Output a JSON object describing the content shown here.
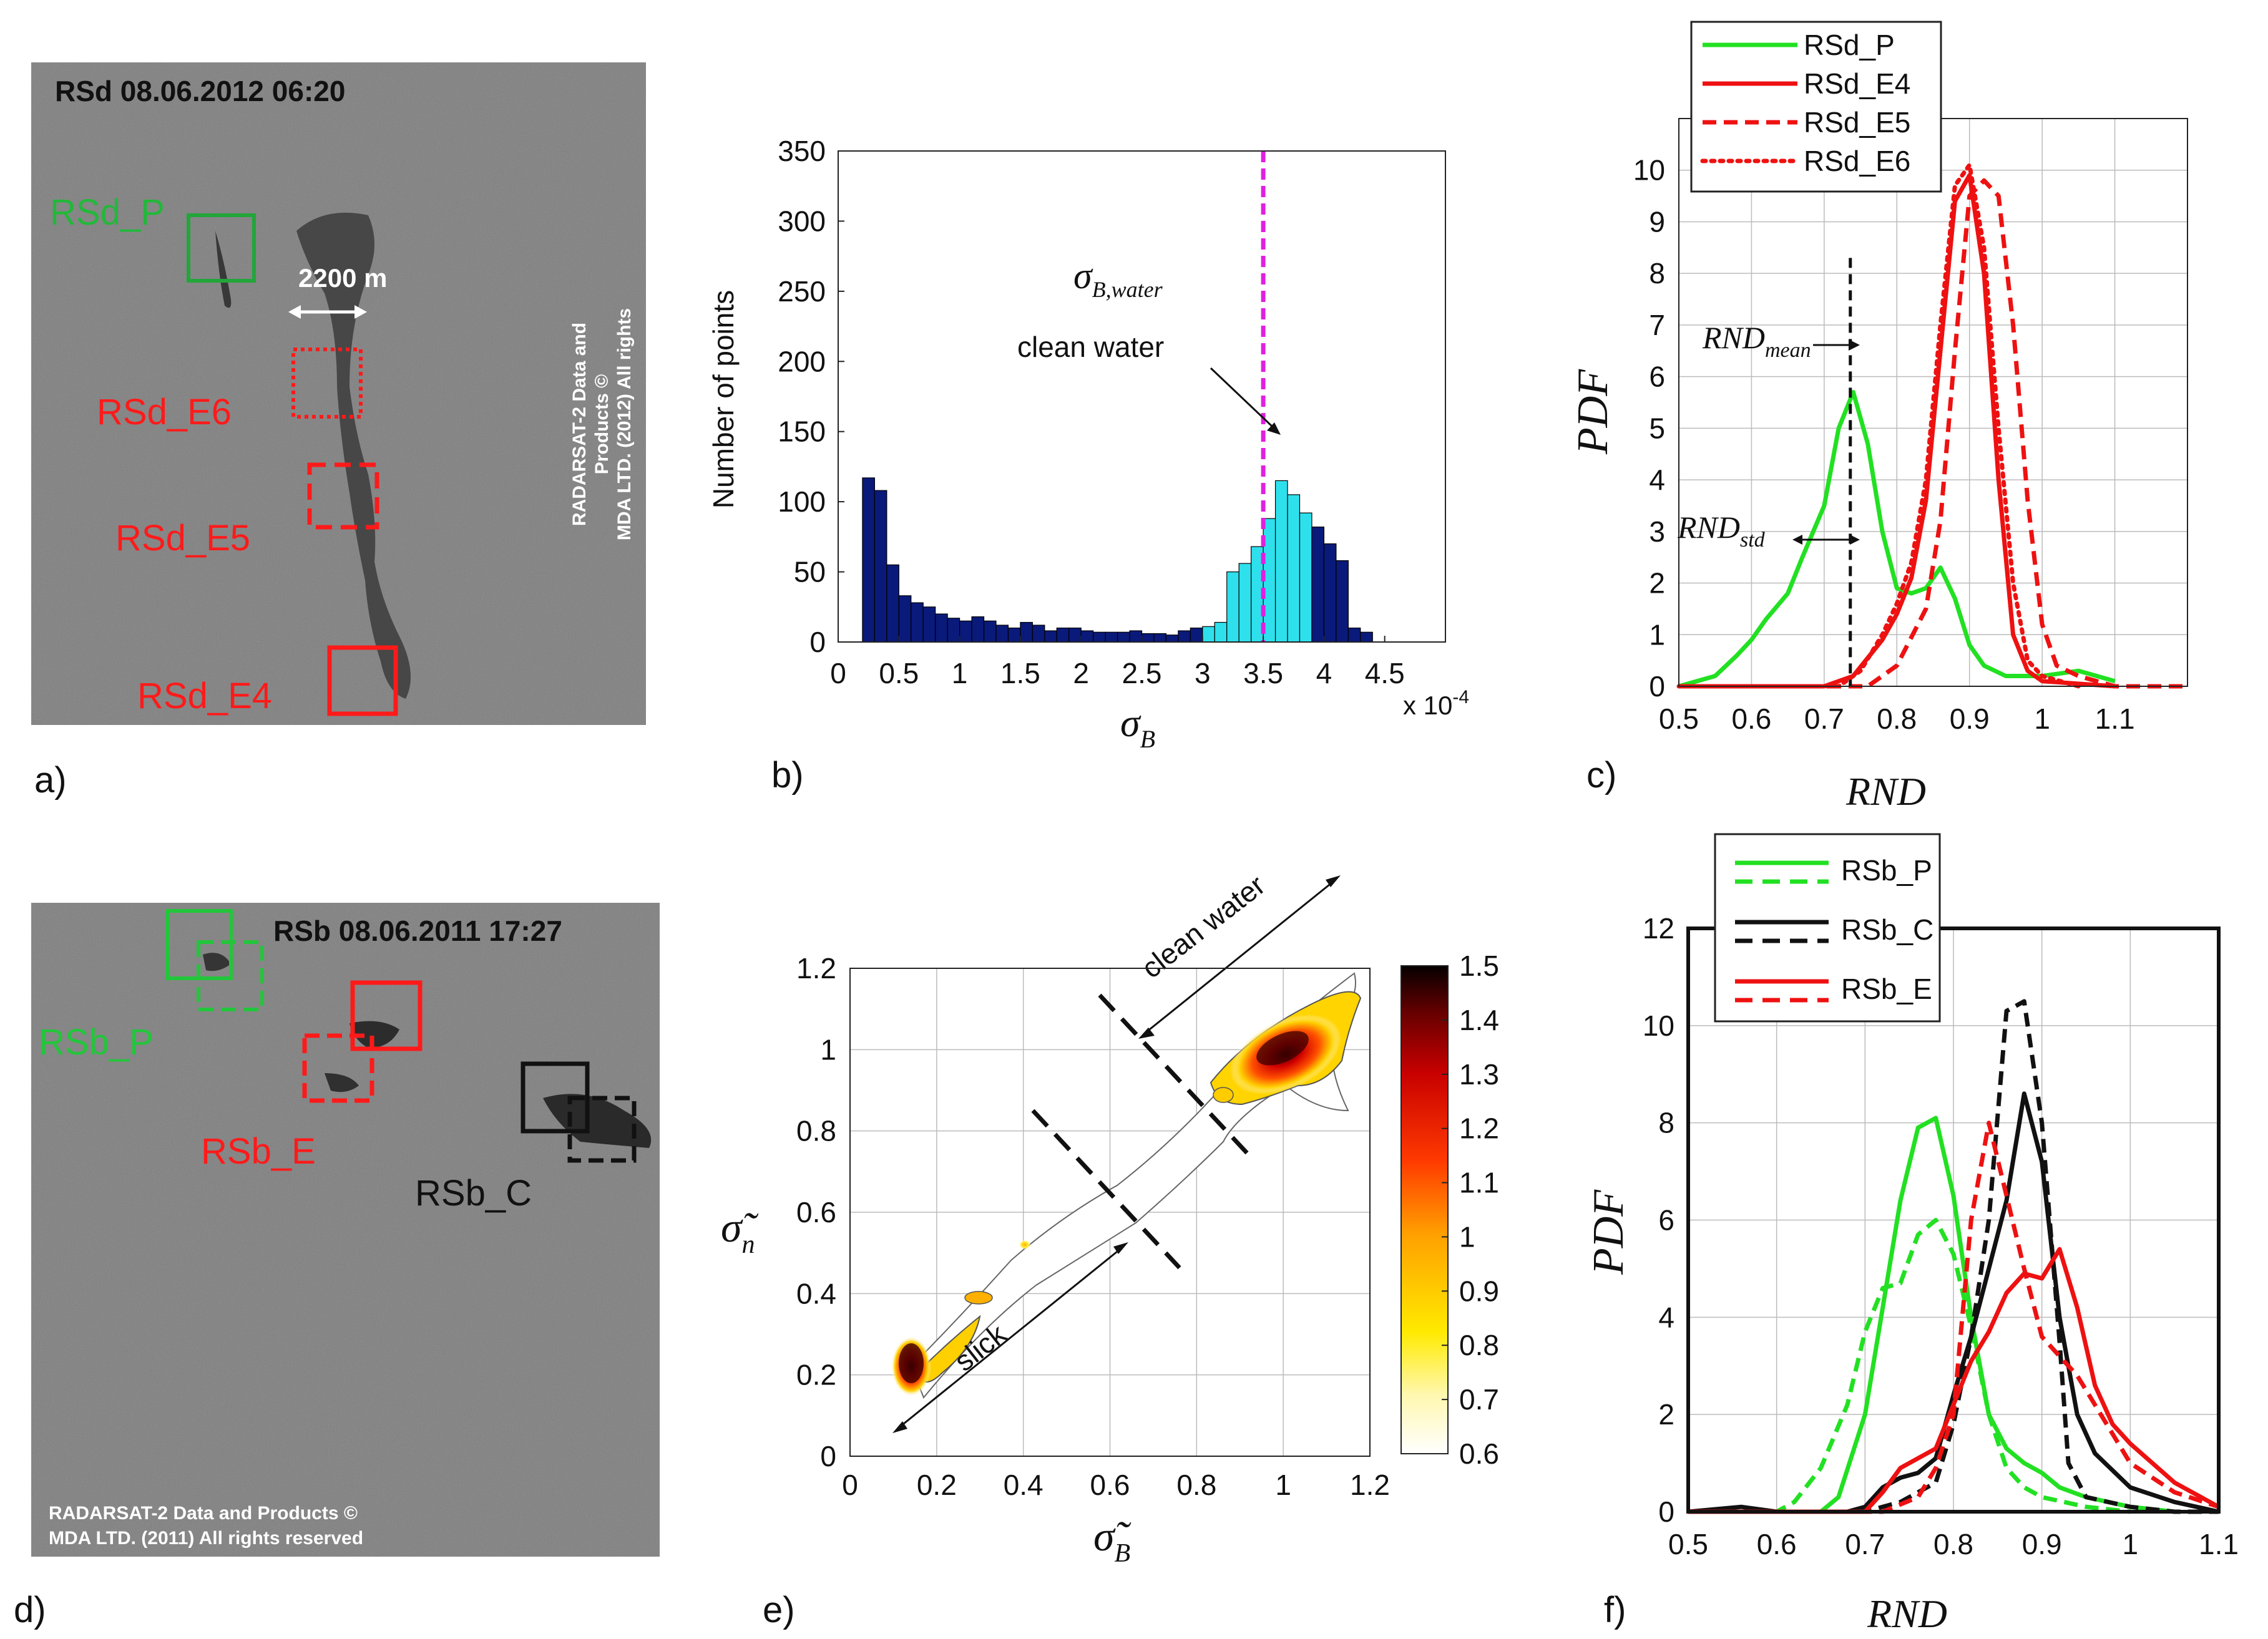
{
  "panel_labels": [
    "a)",
    "b)",
    "c)",
    "d)",
    "e)",
    "f)"
  ],
  "panel_a": {
    "title": "RSd  08.06.2012  06:20",
    "distance_label": "2200 m",
    "copyright": [
      "RADARSAT-2 Data and",
      "Products ©",
      "MDA LTD. (2012) All rights"
    ],
    "boxes": [
      {
        "label": "RSd_P",
        "color": "#22a63a",
        "style": "solid"
      },
      {
        "label": "RSd_E6",
        "color": "#ff1a1a",
        "style": "dotted"
      },
      {
        "label": "RSd_E5",
        "color": "#ff1a1a",
        "style": "dashed"
      },
      {
        "label": "RSd_E4",
        "color": "#ff1a1a",
        "style": "solid"
      }
    ]
  },
  "panel_d": {
    "title": "RSb  08.06.2011  17:27",
    "copyright": [
      "RADARSAT-2 Data and Products ©",
      "MDA LTD. (2011) All rights reserved"
    ],
    "boxes": [
      {
        "label": "RSb_P",
        "color": "#22c63a"
      },
      {
        "label": "RSb_E",
        "color": "#ff1a1a"
      },
      {
        "label": "RSb_C",
        "color": "#111111"
      }
    ]
  },
  "chart_data": [
    {
      "id": "b",
      "type": "bar",
      "ylabel": "Number of points",
      "xlabel": "σB",
      "xlabel_main": "σ",
      "xlabel_sub": "B",
      "x_multiplier": "x 10",
      "x_multiplier_exp": "-4",
      "xlim": [
        0,
        5.0
      ],
      "ylim": [
        0,
        350
      ],
      "xticks": [
        "0",
        "0.5",
        "1",
        "1.5",
        "2",
        "2.5",
        "3",
        "3.5",
        "4",
        "4.5"
      ],
      "yticks": [
        "0",
        "50",
        "100",
        "150",
        "200",
        "250",
        "300",
        "350"
      ],
      "bin_width": 0.1,
      "bin_starts": [
        0.2,
        0.3,
        0.4,
        0.5,
        0.6,
        0.7,
        0.8,
        0.9,
        1.0,
        1.1,
        1.2,
        1.3,
        1.4,
        1.5,
        1.6,
        1.7,
        1.8,
        1.9,
        2.0,
        2.1,
        2.2,
        2.3,
        2.4,
        2.5,
        2.6,
        2.7,
        2.8,
        2.9,
        3.0,
        3.1,
        3.2,
        3.3,
        3.4,
        3.5,
        3.6,
        3.7,
        3.8,
        3.9,
        4.0,
        4.1,
        4.2,
        4.3
      ],
      "counts": [
        117,
        108,
        55,
        33,
        28,
        25,
        20,
        17,
        15,
        18,
        15,
        12,
        10,
        14,
        12,
        8,
        10,
        10,
        8,
        7,
        7,
        7,
        8,
        6,
        6,
        5,
        8,
        10,
        11,
        14,
        50,
        56,
        68,
        88,
        115,
        105,
        92,
        82,
        70,
        58,
        10,
        7
      ],
      "clean_water_bins": [
        3.0,
        3.1,
        3.2,
        3.3,
        3.4,
        3.5,
        3.6,
        3.7,
        3.8
      ],
      "colors": {
        "slick": "#0a1a7a",
        "clean": "#2ee0ec",
        "marker": "#e020e0"
      },
      "marker_x": 3.5,
      "annotation_symbol": "σ",
      "annotation_sub": "B,water",
      "annotation_text": "clean water"
    },
    {
      "id": "c",
      "type": "line",
      "ylabel": "PDF",
      "xlabel": "RND",
      "xlim": [
        0.5,
        1.2
      ],
      "ylim": [
        0,
        11
      ],
      "xticks": [
        "0.5",
        "0.6",
        "0.7",
        "0.8",
        "0.9",
        "1",
        "1.1"
      ],
      "yticks": [
        "0",
        "1",
        "2",
        "3",
        "4",
        "5",
        "6",
        "7",
        "8",
        "9",
        "10"
      ],
      "legend_position": "top",
      "annot_mean": "RND",
      "annot_mean_sub": "mean",
      "annot_std": "RND",
      "annot_std_sub": "std",
      "mean_marker_x": 0.736,
      "series": [
        {
          "name": "RSd_P",
          "color": "#22e022",
          "dash": "solid",
          "x": [
            0.5,
            0.55,
            0.58,
            0.6,
            0.62,
            0.65,
            0.67,
            0.7,
            0.72,
            0.74,
            0.76,
            0.78,
            0.8,
            0.82,
            0.84,
            0.86,
            0.88,
            0.9,
            0.92,
            0.95,
            1.0,
            1.05,
            1.1
          ],
          "y": [
            0,
            0.2,
            0.6,
            0.9,
            1.3,
            1.8,
            2.5,
            3.5,
            5.0,
            5.7,
            4.7,
            3.0,
            1.9,
            1.8,
            1.9,
            2.3,
            1.7,
            0.8,
            0.4,
            0.2,
            0.2,
            0.3,
            0.1
          ]
        },
        {
          "name": "RSd_E4",
          "color": "#ee1111",
          "dash": "solid",
          "x": [
            0.5,
            0.7,
            0.74,
            0.78,
            0.8,
            0.82,
            0.84,
            0.86,
            0.88,
            0.9,
            0.92,
            0.94,
            0.96,
            0.98,
            1.0,
            1.1
          ],
          "y": [
            0,
            0,
            0.2,
            0.9,
            1.4,
            2.1,
            3.6,
            6.5,
            9.4,
            9.9,
            8.0,
            4.0,
            1.0,
            0.3,
            0.1,
            0
          ]
        },
        {
          "name": "RSd_E5",
          "color": "#ee1111",
          "dash": "dashed",
          "x": [
            0.5,
            0.76,
            0.8,
            0.84,
            0.86,
            0.88,
            0.9,
            0.92,
            0.94,
            0.96,
            0.98,
            1.0,
            1.02,
            1.05,
            1.1,
            1.2
          ],
          "y": [
            0,
            0,
            0.4,
            1.5,
            3.2,
            6.5,
            9.5,
            9.8,
            9.5,
            7.0,
            3.6,
            1.2,
            0.4,
            0.2,
            0,
            0
          ]
        },
        {
          "name": "RSd_E6",
          "color": "#ee1111",
          "dash": "dotted",
          "x": [
            0.5,
            0.72,
            0.75,
            0.78,
            0.8,
            0.82,
            0.84,
            0.86,
            0.88,
            0.9,
            0.92,
            0.94,
            0.96,
            0.98,
            1.0,
            1.05
          ],
          "y": [
            0,
            0,
            0.3,
            1.0,
            1.6,
            2.4,
            4.0,
            7.0,
            9.7,
            10.1,
            8.5,
            5.0,
            2.0,
            0.5,
            0.2,
            0
          ]
        }
      ]
    },
    {
      "id": "e",
      "type": "heatmap",
      "xlabel": "σ̃B",
      "xlabel_sub": "B",
      "ylabel": "σ̃n",
      "ylabel_sub": "n",
      "xlim": [
        0,
        1.2
      ],
      "ylim": [
        0,
        1.2
      ],
      "xticks": [
        "0",
        "0.2",
        "0.4",
        "0.6",
        "0.8",
        "1",
        "1.2"
      ],
      "yticks": [
        "0",
        "0.2",
        "0.4",
        "0.6",
        "0.8",
        "1",
        "1.2"
      ],
      "colorbar_ticks": [
        "0.6",
        "0.7",
        "0.8",
        "0.9",
        "1",
        "1.1",
        "1.2",
        "1.3",
        "1.4",
        "1.5"
      ],
      "colorbar_range": [
        0.6,
        1.5
      ],
      "annotations": [
        "clean water",
        "slick"
      ],
      "clusters": [
        {
          "cx": 1.0,
          "cy": 1.0,
          "level": 1.5
        },
        {
          "cx": 0.08,
          "cy": 0.18,
          "level": 1.4
        },
        {
          "cx": 0.42,
          "cy": 0.53,
          "level": 0.8
        },
        {
          "cx": 0.3,
          "cy": 0.4,
          "level": 0.75
        },
        {
          "cx": 0.88,
          "cy": 0.89,
          "level": 0.85
        }
      ]
    },
    {
      "id": "f",
      "type": "line",
      "ylabel": "PDF",
      "xlabel": "RND",
      "xlim": [
        0.5,
        1.1
      ],
      "ylim": [
        0,
        12
      ],
      "xticks": [
        "0.5",
        "0.6",
        "0.7",
        "0.8",
        "0.9",
        "1",
        "1.1"
      ],
      "yticks": [
        "0",
        "2",
        "4",
        "6",
        "8",
        "10",
        "12"
      ],
      "legend_position": "top-left",
      "legend_groups": [
        {
          "name": "RSb_P",
          "color": "#22e022"
        },
        {
          "name": "RSb_C",
          "color": "#111111"
        },
        {
          "name": "RSb_E",
          "color": "#ee1111"
        }
      ],
      "series": [
        {
          "name": "RSb_P",
          "color": "#22e022",
          "dash": "solid",
          "x": [
            0.5,
            0.65,
            0.67,
            0.7,
            0.72,
            0.74,
            0.76,
            0.78,
            0.8,
            0.82,
            0.84,
            0.86,
            0.88,
            0.9,
            0.92,
            0.95,
            1.0,
            1.05
          ],
          "y": [
            0,
            0,
            0.3,
            2.0,
            4.2,
            6.4,
            7.9,
            8.1,
            6.5,
            4.0,
            2.0,
            1.3,
            1.0,
            0.8,
            0.5,
            0.3,
            0.1,
            0
          ]
        },
        {
          "name": "RSb_P",
          "color": "#22e022",
          "dash": "dashed",
          "x": [
            0.5,
            0.6,
            0.62,
            0.65,
            0.68,
            0.7,
            0.72,
            0.74,
            0.76,
            0.78,
            0.8,
            0.82,
            0.84,
            0.86,
            0.88,
            0.9,
            0.95,
            1.0
          ],
          "y": [
            0,
            0,
            0.2,
            0.9,
            2.2,
            3.7,
            4.6,
            4.7,
            5.7,
            6.0,
            5.3,
            3.8,
            2.0,
            0.9,
            0.5,
            0.3,
            0.1,
            0
          ]
        },
        {
          "name": "RSb_C",
          "color": "#111111",
          "dash": "solid",
          "x": [
            0.5,
            0.56,
            0.6,
            0.68,
            0.7,
            0.72,
            0.74,
            0.76,
            0.78,
            0.8,
            0.82,
            0.84,
            0.86,
            0.88,
            0.9,
            0.92,
            0.94,
            0.96,
            1.0,
            1.05,
            1.1
          ],
          "y": [
            0,
            0.1,
            0,
            0,
            0.1,
            0.5,
            0.7,
            0.8,
            1.1,
            2.4,
            3.6,
            5.0,
            6.4,
            8.6,
            7.2,
            4.0,
            2.0,
            1.2,
            0.5,
            0.2,
            0
          ]
        },
        {
          "name": "RSb_C",
          "color": "#111111",
          "dash": "dashed",
          "x": [
            0.5,
            0.7,
            0.74,
            0.78,
            0.8,
            0.82,
            0.84,
            0.86,
            0.88,
            0.9,
            0.92,
            0.93,
            0.95,
            1.0,
            1.05,
            1.1
          ],
          "y": [
            0,
            0,
            0.2,
            0.6,
            1.8,
            3.6,
            6.0,
            10.3,
            10.5,
            8.0,
            3.5,
            1.0,
            0.3,
            0.1,
            0,
            0
          ]
        },
        {
          "name": "RSb_E",
          "color": "#ee1111",
          "dash": "solid",
          "x": [
            0.5,
            0.7,
            0.72,
            0.74,
            0.76,
            0.78,
            0.8,
            0.82,
            0.84,
            0.86,
            0.88,
            0.9,
            0.92,
            0.94,
            0.96,
            0.98,
            1.0,
            1.05,
            1.1
          ],
          "y": [
            0,
            0,
            0.4,
            0.9,
            1.1,
            1.3,
            2.2,
            3.1,
            3.7,
            4.5,
            4.9,
            4.8,
            5.4,
            4.2,
            2.6,
            1.8,
            1.4,
            0.6,
            0.1
          ]
        },
        {
          "name": "RSb_E",
          "color": "#ee1111",
          "dash": "dashed",
          "x": [
            0.5,
            0.72,
            0.76,
            0.78,
            0.8,
            0.82,
            0.84,
            0.86,
            0.88,
            0.9,
            0.92,
            0.94,
            0.96,
            0.98,
            1.0,
            1.05,
            1.1
          ],
          "y": [
            0,
            0,
            0.3,
            0.9,
            2.0,
            6.0,
            8.0,
            6.5,
            5.0,
            3.6,
            3.2,
            2.8,
            2.2,
            1.6,
            1.0,
            0.4,
            0.1
          ]
        }
      ]
    }
  ]
}
